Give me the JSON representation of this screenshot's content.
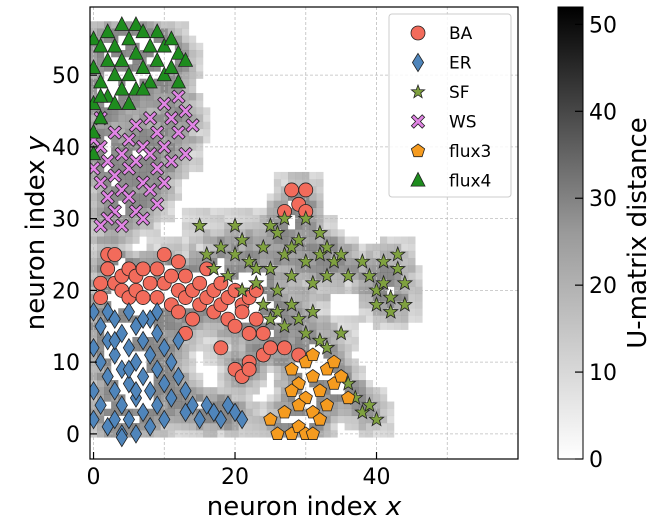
{
  "chart_data": {
    "type": "scatter",
    "xlabel": "neuron index",
    "xlabel_var": "x",
    "ylabel": "neuron index",
    "ylabel_var": "y",
    "xlim": [
      -0.5,
      60
    ],
    "ylim": [
      -3.5,
      59.5
    ],
    "xticks": [
      0,
      20,
      40
    ],
    "yticks": [
      0,
      10,
      20,
      30,
      40,
      50
    ],
    "grid": true,
    "legend_position": "upper-right",
    "background": "U-matrix heatmap (greyscale)",
    "colorbar": {
      "label": "U-matrix distance",
      "range": [
        0,
        52
      ],
      "ticks": [
        0,
        10,
        20,
        30,
        40,
        50
      ],
      "colormap": "greys"
    },
    "series": [
      {
        "name": "BA",
        "marker": "circle",
        "color": "#f26b5b",
        "points": [
          [
            1,
            19
          ],
          [
            1,
            21
          ],
          [
            2,
            23
          ],
          [
            2,
            25
          ],
          [
            3,
            21
          ],
          [
            3,
            25
          ],
          [
            4,
            22
          ],
          [
            4,
            20
          ],
          [
            5,
            19
          ],
          [
            5,
            23
          ],
          [
            6,
            20
          ],
          [
            6,
            22
          ],
          [
            7,
            23
          ],
          [
            7,
            19
          ],
          [
            8,
            21
          ],
          [
            9,
            19
          ],
          [
            9,
            23
          ],
          [
            10,
            21
          ],
          [
            10,
            25
          ],
          [
            11,
            22
          ],
          [
            11,
            18
          ],
          [
            12,
            20
          ],
          [
            12,
            17
          ],
          [
            12,
            24
          ],
          [
            13,
            22
          ],
          [
            13,
            19
          ],
          [
            13,
            14
          ],
          [
            14,
            20
          ],
          [
            14,
            16
          ],
          [
            15,
            21
          ],
          [
            15,
            18
          ],
          [
            16,
            19
          ],
          [
            16,
            23
          ],
          [
            17,
            20
          ],
          [
            17,
            17
          ],
          [
            18,
            18
          ],
          [
            18,
            21
          ],
          [
            18,
            12
          ],
          [
            19,
            16
          ],
          [
            19,
            19
          ],
          [
            20,
            20
          ],
          [
            20,
            15
          ],
          [
            20,
            9
          ],
          [
            21,
            18
          ],
          [
            21,
            17
          ],
          [
            21,
            8
          ],
          [
            22,
            19
          ],
          [
            22,
            14
          ],
          [
            22,
            10
          ],
          [
            23,
            16
          ],
          [
            23,
            20
          ],
          [
            24,
            11
          ],
          [
            25,
            12
          ],
          [
            27,
            12
          ],
          [
            29,
            11
          ],
          [
            24,
            14
          ],
          [
            28,
            34
          ],
          [
            30,
            34
          ],
          [
            29,
            32
          ],
          [
            30,
            31
          ],
          [
            27,
            31
          ],
          [
            22,
            9
          ]
        ]
      },
      {
        "name": "ER",
        "marker": "diamond",
        "color": "#4f85bb",
        "points": [
          [
            0,
            17
          ],
          [
            0,
            12
          ],
          [
            0,
            6
          ],
          [
            0,
            2
          ],
          [
            1,
            15
          ],
          [
            1,
            10
          ],
          [
            1,
            4
          ],
          [
            2,
            17
          ],
          [
            2,
            13
          ],
          [
            2,
            8
          ],
          [
            2,
            1
          ],
          [
            3,
            16
          ],
          [
            3,
            11
          ],
          [
            3,
            6
          ],
          [
            3,
            2
          ],
          [
            4,
            14
          ],
          [
            4,
            9
          ],
          [
            4,
            4
          ],
          [
            4,
            0
          ],
          [
            5,
            17
          ],
          [
            5,
            12
          ],
          [
            5,
            7
          ],
          [
            5,
            2
          ],
          [
            6,
            15
          ],
          [
            6,
            10
          ],
          [
            6,
            5
          ],
          [
            6,
            0
          ],
          [
            7,
            13
          ],
          [
            7,
            8
          ],
          [
            7,
            3
          ],
          [
            8,
            16
          ],
          [
            8,
            11
          ],
          [
            8,
            6
          ],
          [
            8,
            1
          ],
          [
            9,
            14
          ],
          [
            9,
            9
          ],
          [
            9,
            4
          ],
          [
            10,
            12
          ],
          [
            10,
            7
          ],
          [
            10,
            2
          ],
          [
            11,
            10
          ],
          [
            11,
            5
          ],
          [
            12,
            13
          ],
          [
            12,
            8
          ],
          [
            13,
            6
          ],
          [
            13,
            3
          ],
          [
            14,
            4
          ],
          [
            15,
            2
          ],
          [
            16,
            4
          ],
          [
            17,
            3
          ],
          [
            18,
            2
          ],
          [
            19,
            4
          ],
          [
            20,
            3
          ],
          [
            21,
            2
          ],
          [
            4,
            -0.5
          ],
          [
            6,
            6
          ],
          [
            5,
            9
          ],
          [
            3,
            13
          ],
          [
            7,
            16
          ],
          [
            9,
            17
          ]
        ]
      },
      {
        "name": "SF",
        "marker": "star",
        "color": "#7fa13f",
        "points": [
          [
            15,
            29
          ],
          [
            16,
            25
          ],
          [
            17,
            23
          ],
          [
            18,
            26
          ],
          [
            19,
            22
          ],
          [
            20,
            25
          ],
          [
            21,
            20
          ],
          [
            22,
            24
          ],
          [
            23,
            21
          ],
          [
            24,
            26
          ],
          [
            25,
            23
          ],
          [
            26,
            20
          ],
          [
            27,
            25
          ],
          [
            28,
            22
          ],
          [
            29,
            27
          ],
          [
            30,
            24
          ],
          [
            31,
            21
          ],
          [
            32,
            25
          ],
          [
            33,
            22
          ],
          [
            34,
            24
          ],
          [
            26,
            17
          ],
          [
            27,
            15
          ],
          [
            28,
            18
          ],
          [
            29,
            16
          ],
          [
            30,
            14
          ],
          [
            31,
            17
          ],
          [
            32,
            13
          ],
          [
            25,
            29
          ],
          [
            27,
            30
          ],
          [
            30,
            30
          ],
          [
            32,
            28
          ],
          [
            33,
            26
          ],
          [
            35,
            25
          ],
          [
            36,
            22
          ],
          [
            24,
            18
          ],
          [
            25,
            16
          ],
          [
            23,
            23
          ],
          [
            39,
            22
          ],
          [
            40,
            20
          ],
          [
            41,
            21
          ],
          [
            42,
            19
          ],
          [
            43,
            23
          ],
          [
            42,
            17
          ],
          [
            44,
            21
          ],
          [
            41,
            24
          ],
          [
            43,
            25
          ],
          [
            40,
            18
          ],
          [
            44,
            18
          ],
          [
            38,
            24
          ],
          [
            33,
            12
          ],
          [
            35,
            14
          ],
          [
            36,
            7
          ],
          [
            37,
            5
          ],
          [
            38,
            3
          ],
          [
            39,
            4
          ],
          [
            40,
            2
          ],
          [
            26,
            28
          ],
          [
            28,
            26
          ],
          [
            20,
            29
          ],
          [
            21,
            27
          ]
        ]
      },
      {
        "name": "WS",
        "marker": "x-filled",
        "color": "#e285e6",
        "points": [
          [
            0,
            37
          ],
          [
            1,
            35
          ],
          [
            1,
            40
          ],
          [
            2,
            38
          ],
          [
            2,
            33
          ],
          [
            3,
            42
          ],
          [
            3,
            36
          ],
          [
            4,
            39
          ],
          [
            4,
            34
          ],
          [
            5,
            41
          ],
          [
            5,
            37
          ],
          [
            6,
            43
          ],
          [
            6,
            38
          ],
          [
            7,
            40
          ],
          [
            7,
            35
          ],
          [
            8,
            44
          ],
          [
            8,
            39
          ],
          [
            9,
            42
          ],
          [
            9,
            37
          ],
          [
            10,
            46
          ],
          [
            10,
            40
          ],
          [
            11,
            44
          ],
          [
            11,
            38
          ],
          [
            12,
            47
          ],
          [
            12,
            42
          ],
          [
            13,
            45
          ],
          [
            14,
            43
          ],
          [
            3,
            31
          ],
          [
            4,
            29
          ],
          [
            5,
            33
          ],
          [
            6,
            31
          ],
          [
            7,
            30
          ],
          [
            2,
            30
          ],
          [
            1,
            29
          ],
          [
            8,
            34
          ],
          [
            9,
            32
          ],
          [
            10,
            35
          ],
          [
            13,
            39
          ],
          [
            0,
            41
          ],
          [
            1,
            44
          ]
        ]
      },
      {
        "name": "flux3",
        "marker": "pentagon",
        "color": "#f59b1f",
        "points": [
          [
            28,
            9
          ],
          [
            29,
            7
          ],
          [
            30,
            10
          ],
          [
            31,
            8
          ],
          [
            32,
            6
          ],
          [
            33,
            9
          ],
          [
            34,
            7
          ],
          [
            30,
            5
          ],
          [
            31,
            3
          ],
          [
            29,
            4
          ],
          [
            32,
            2
          ],
          [
            33,
            4
          ],
          [
            35,
            8
          ],
          [
            34,
            10
          ],
          [
            28,
            6
          ],
          [
            27,
            3
          ],
          [
            26,
            0
          ],
          [
            28,
            0
          ],
          [
            29,
            1
          ],
          [
            30,
            0
          ],
          [
            31,
            0
          ],
          [
            31,
            11
          ],
          [
            36,
            5
          ],
          [
            25,
            2
          ]
        ]
      },
      {
        "name": "flux4",
        "marker": "triangle",
        "color": "#1e8c1e",
        "points": [
          [
            0,
            55
          ],
          [
            0,
            51
          ],
          [
            0,
            46
          ],
          [
            0,
            42
          ],
          [
            1,
            54
          ],
          [
            1,
            49
          ],
          [
            1,
            44
          ],
          [
            2,
            56
          ],
          [
            2,
            52
          ],
          [
            2,
            47
          ],
          [
            3,
            54
          ],
          [
            3,
            50
          ],
          [
            4,
            57
          ],
          [
            4,
            52
          ],
          [
            4,
            48
          ],
          [
            5,
            55
          ],
          [
            5,
            50
          ],
          [
            6,
            57
          ],
          [
            6,
            53
          ],
          [
            6,
            48
          ],
          [
            7,
            56
          ],
          [
            7,
            51
          ],
          [
            8,
            54
          ],
          [
            8,
            49
          ],
          [
            9,
            56
          ],
          [
            9,
            52
          ],
          [
            10,
            54
          ],
          [
            10,
            50
          ],
          [
            11,
            55
          ],
          [
            11,
            51
          ],
          [
            12,
            53
          ],
          [
            0,
            39
          ],
          [
            1,
            47
          ],
          [
            3,
            46
          ],
          [
            5,
            46
          ],
          [
            7,
            48
          ],
          [
            13,
            52
          ],
          [
            12,
            49
          ]
        ]
      }
    ]
  }
}
